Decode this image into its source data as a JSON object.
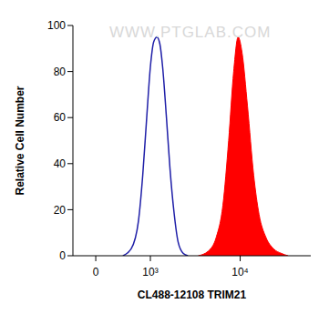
{
  "chart_data": {
    "type": "area",
    "annotation": "WWW.PTGLAB.COM",
    "x_label": "CL488-12108 TRIM21",
    "y_label": "Relative Cell Number",
    "log": "x",
    "xlim": [
      -330,
      58000
    ],
    "xticks": [
      0,
      {
        "value": 1000,
        "label": "10³"
      },
      {
        "value": 10000,
        "label": "10⁴"
      }
    ],
    "ylim": [
      0,
      100
    ],
    "yticks": [
      0,
      20,
      40,
      60,
      80,
      100
    ],
    "grid": false,
    "series": [
      {
        "type": "area",
        "color": "#ff0000",
        "x": [
          3500,
          4500,
          5500,
          6500,
          7500,
          8500,
          9500,
          10500,
          12000,
          14000,
          16000,
          19000,
          23000,
          28000,
          33000
        ],
        "values": [
          0,
          2,
          8,
          22,
          50,
          80,
          95,
          88,
          65,
          35,
          18,
          8,
          3,
          1,
          0
        ]
      },
      {
        "type": "line",
        "color": "#1f1fa8",
        "x": [
          400,
          550,
          700,
          800,
          900,
          1000,
          1100,
          1200,
          1300,
          1400,
          1550,
          1700,
          1900,
          2100,
          2400,
          2700
        ],
        "values": [
          0,
          3,
          15,
          35,
          60,
          82,
          93,
          95,
          92,
          82,
          60,
          38,
          18,
          6,
          1,
          0
        ]
      }
    ]
  }
}
